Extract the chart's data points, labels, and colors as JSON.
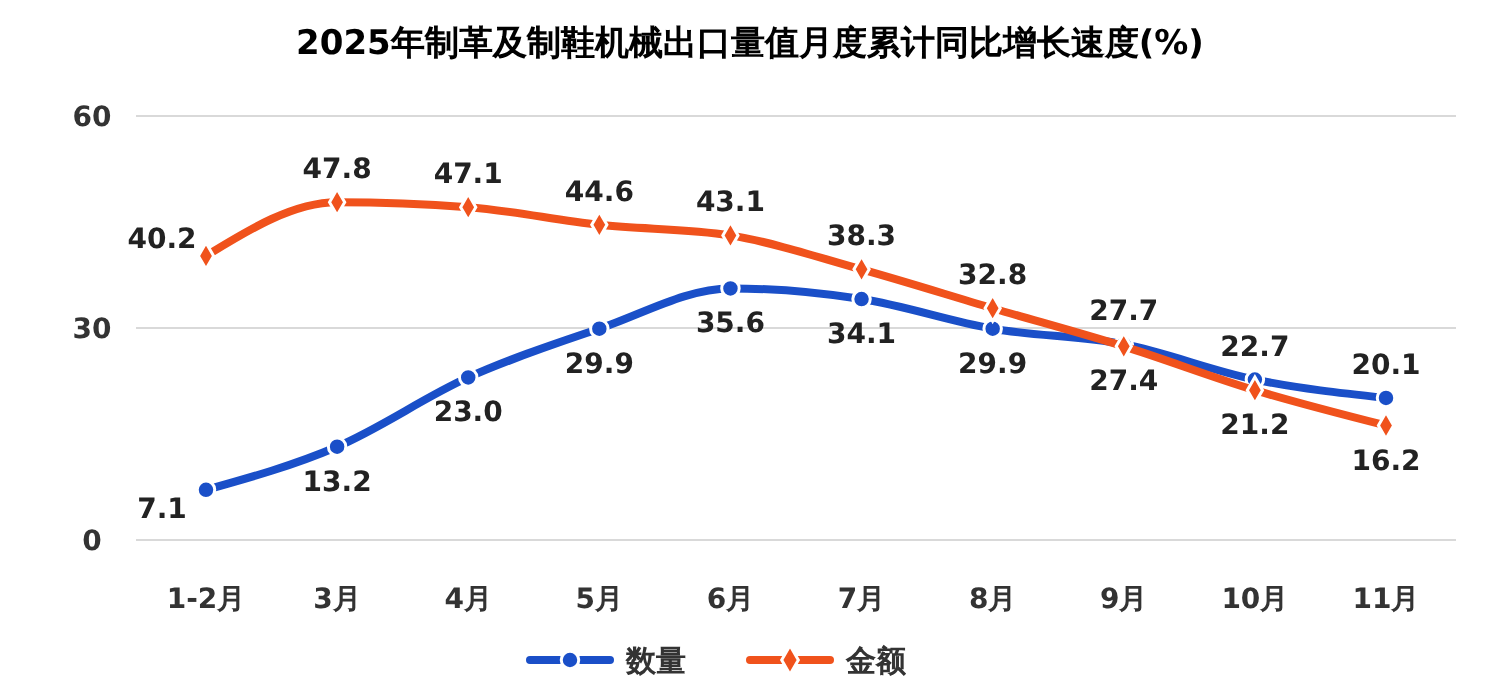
{
  "chart_data": {
    "type": "line",
    "title": "2025年制革及制鞋机械出口量值月度累计同比增长速度(%)",
    "categories": [
      "1-2月",
      "3月",
      "4月",
      "5月",
      "6月",
      "7月",
      "8月",
      "9月",
      "10月",
      "11月"
    ],
    "series": [
      {
        "name": "数量",
        "color": "#1a4fc8",
        "marker": "circle",
        "values": [
          7.1,
          13.2,
          23.0,
          29.9,
          35.6,
          34.1,
          29.9,
          27.7,
          22.7,
          20.1
        ],
        "value_labels": [
          "7.1",
          "13.2",
          "23.0",
          "29.9",
          "35.6",
          "34.1",
          "29.9",
          "27.7",
          "22.7",
          "20.1"
        ]
      },
      {
        "name": "金额",
        "color": "#f0521c",
        "marker": "diamond",
        "values": [
          40.2,
          47.8,
          47.1,
          44.6,
          43.1,
          38.3,
          32.8,
          27.4,
          21.2,
          16.2
        ],
        "value_labels": [
          "40.2",
          "47.8",
          "47.1",
          "44.6",
          "43.1",
          "38.3",
          "32.8",
          "27.4",
          "21.2",
          "16.2"
        ]
      }
    ],
    "ylim": [
      0,
      60
    ],
    "yticks": [
      0,
      30,
      60
    ],
    "grid": "y",
    "legend": "bottom",
    "line_style": "solid"
  }
}
